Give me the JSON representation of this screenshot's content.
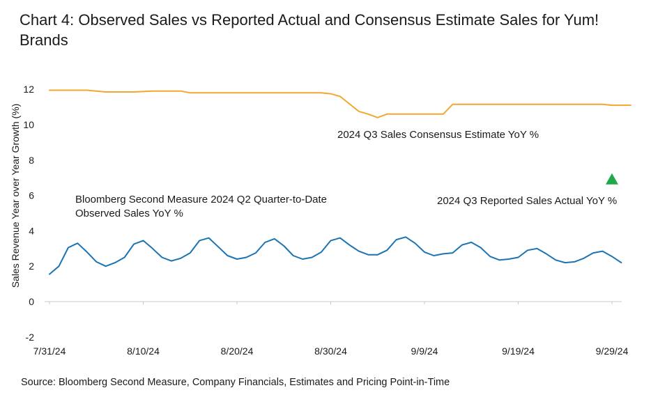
{
  "chart_data": {
    "type": "line",
    "title": "Chart 4: Observed Sales vs Reported Actual and Consensus Estimate Sales for Yum! Brands",
    "ylabel": "Sales Revenue Year over Year Growth (%)",
    "xlabel": "",
    "source": "Source: Bloomberg Second Measure, Company Financials, Estimates and Pricing Point-in-Time",
    "ylim": [
      -2,
      12.5
    ],
    "yticks": [
      -2,
      0,
      2,
      4,
      6,
      8,
      10,
      12
    ],
    "xticks": [
      "7/31/24",
      "8/10/24",
      "8/20/24",
      "8/30/24",
      "9/9/24",
      "9/19/24",
      "9/29/24"
    ],
    "x_start": "2024-07-31",
    "grid": false,
    "colors": {
      "consensus": "#f0a830",
      "observed": "#1a74b4",
      "actual": "#22a848"
    },
    "series": [
      {
        "name": "2024 Q3 Sales Consensus Estimate YoY %",
        "x": [
          "2024-07-31",
          "2024-08-04",
          "2024-08-06",
          "2024-08-09",
          "2024-08-11",
          "2024-08-14",
          "2024-08-15",
          "2024-08-29",
          "2024-08-30",
          "2024-08-31",
          "2024-09-02",
          "2024-09-03",
          "2024-09-04",
          "2024-09-05",
          "2024-09-11",
          "2024-09-12",
          "2024-09-28",
          "2024-09-29",
          "2024-10-01"
        ],
        "values": [
          11.95,
          11.95,
          11.85,
          11.85,
          11.9,
          11.9,
          11.8,
          11.8,
          11.75,
          11.6,
          10.75,
          10.6,
          10.4,
          10.6,
          10.6,
          11.15,
          11.15,
          11.1,
          11.1
        ]
      },
      {
        "name": "Bloomberg Second Measure 2024 Q2 Quarter-to-Date Observed Sales YoY %",
        "x": [
          "2024-07-31",
          "2024-08-01",
          "2024-08-02",
          "2024-08-03",
          "2024-08-04",
          "2024-08-05",
          "2024-08-06",
          "2024-08-07",
          "2024-08-08",
          "2024-08-09",
          "2024-08-10",
          "2024-08-11",
          "2024-08-12",
          "2024-08-13",
          "2024-08-14",
          "2024-08-15",
          "2024-08-16",
          "2024-08-17",
          "2024-08-18",
          "2024-08-19",
          "2024-08-20",
          "2024-08-21",
          "2024-08-22",
          "2024-08-23",
          "2024-08-24",
          "2024-08-25",
          "2024-08-26",
          "2024-08-27",
          "2024-08-28",
          "2024-08-29",
          "2024-08-30",
          "2024-08-31",
          "2024-09-01",
          "2024-09-02",
          "2024-09-03",
          "2024-09-04",
          "2024-09-05",
          "2024-09-06",
          "2024-09-07",
          "2024-09-08",
          "2024-09-09",
          "2024-09-10",
          "2024-09-11",
          "2024-09-12",
          "2024-09-13",
          "2024-09-14",
          "2024-09-15",
          "2024-09-16",
          "2024-09-17",
          "2024-09-18",
          "2024-09-19",
          "2024-09-20",
          "2024-09-21",
          "2024-09-22",
          "2024-09-23",
          "2024-09-24",
          "2024-09-25",
          "2024-09-26",
          "2024-09-27",
          "2024-09-28",
          "2024-09-29",
          "2024-09-30"
        ],
        "values": [
          1.55,
          2.0,
          3.05,
          3.3,
          2.8,
          2.25,
          2.0,
          2.2,
          2.5,
          3.25,
          3.45,
          3.0,
          2.5,
          2.3,
          2.45,
          2.75,
          3.45,
          3.6,
          3.1,
          2.6,
          2.4,
          2.5,
          2.75,
          3.35,
          3.55,
          3.15,
          2.6,
          2.4,
          2.5,
          2.8,
          3.45,
          3.6,
          3.2,
          2.85,
          2.65,
          2.65,
          2.9,
          3.5,
          3.65,
          3.3,
          2.8,
          2.6,
          2.7,
          2.75,
          3.2,
          3.35,
          3.05,
          2.55,
          2.35,
          2.4,
          2.5,
          2.9,
          3.0,
          2.7,
          2.35,
          2.2,
          2.25,
          2.45,
          2.75,
          2.85,
          2.55,
          2.2
        ]
      },
      {
        "name": "2024 Q3 Reported Sales Actual YoY %",
        "type": "scatter",
        "marker": "triangle",
        "x": [
          "2024-09-29"
        ],
        "values": [
          6.9
        ]
      }
    ],
    "annotations": [
      "2024 Q3 Sales Consensus Estimate YoY %",
      "Bloomberg Second Measure 2024 Q2 Quarter-to-Date",
      "Observed Sales YoY %",
      "2024 Q3 Reported Sales Actual YoY %"
    ]
  }
}
